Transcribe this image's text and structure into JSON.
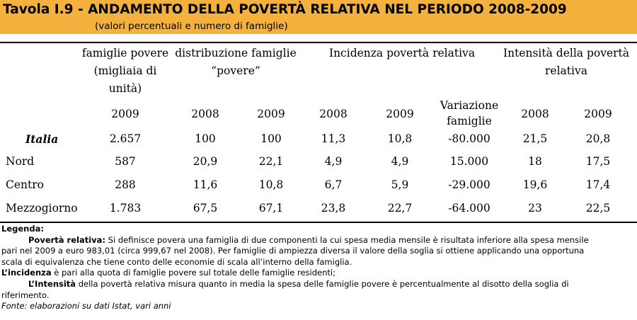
{
  "title": "Tavola I.9 - ANDAMENTO DELLA POVERTÀ RELATIVA NEL PERIODO 2008-2009",
  "subtitle": "(valori percentuali e numero di famiglie)",
  "headers": {
    "famiglie_povere": [
      "famiglie povere",
      "(migliaia di",
      "unità)"
    ],
    "distribuzione": [
      "distribuzione  famiglie",
      "“povere”"
    ],
    "incidenza": "Incidenza povertà relativa",
    "intensita": [
      "Intensità della povertà",
      "relativa"
    ],
    "sub": [
      "2009",
      "2008",
      "2009",
      "2008",
      "2009",
      "Variazione famiglie",
      "2008",
      "2009"
    ],
    "variazione": [
      "Variazione",
      "famiglie"
    ]
  },
  "rows": [
    {
      "label": "Italia",
      "values": [
        "2.657",
        "100",
        "100",
        "11,3",
        "10,8",
        "-80.000",
        "21,5",
        "20,8"
      ]
    },
    {
      "label": "Nord",
      "values": [
        "587",
        "20,9",
        "22,1",
        "4,9",
        "4,9",
        "15.000",
        "18",
        "17,5"
      ]
    },
    {
      "label": "Centro",
      "values": [
        "288",
        "11,6",
        "10,8",
        "6,7",
        "5,9",
        "-29.000",
        "19,6",
        "17,4"
      ]
    },
    {
      "label": "Mezzogiorno",
      "values": [
        "1.783",
        "67,5",
        "67,1",
        "23,8",
        "22,7",
        "-64.000",
        "23",
        "22,5"
      ]
    }
  ],
  "legend": {
    "heading": "Legenda:",
    "poverta_term": "Povertà relativa:",
    "poverta_text_1": " Si definisce povera una famiglia di due componenti la cui spesa media mensile è risultata inferiore alla spesa mensile",
    "poverta_text_2": "pari nel 2009 a euro 983,01 (circa 999,67 nel 2008). Per famiglie di ampiezza diversa il valore della soglia si ottiene applicando una opportuna",
    "poverta_text_3": "scala di equivalenza che tiene conto delle economie di scala all’interno della famiglia.",
    "incidenza_term": "L’incidenza",
    "incidenza_text": " è pari alla quota di famiglie povere sul totale delle famiglie residenti;",
    "intensita_term": "L’Intensità",
    "intensita_text_1": " della povertà relativa misura quanto in media la spesa delle famiglie povere è percentualmente al disotto della soglia di",
    "intensita_text_2": "riferimento.",
    "fonte": "Fonte:  elaborazioni su dati Istat, vari anni"
  }
}
